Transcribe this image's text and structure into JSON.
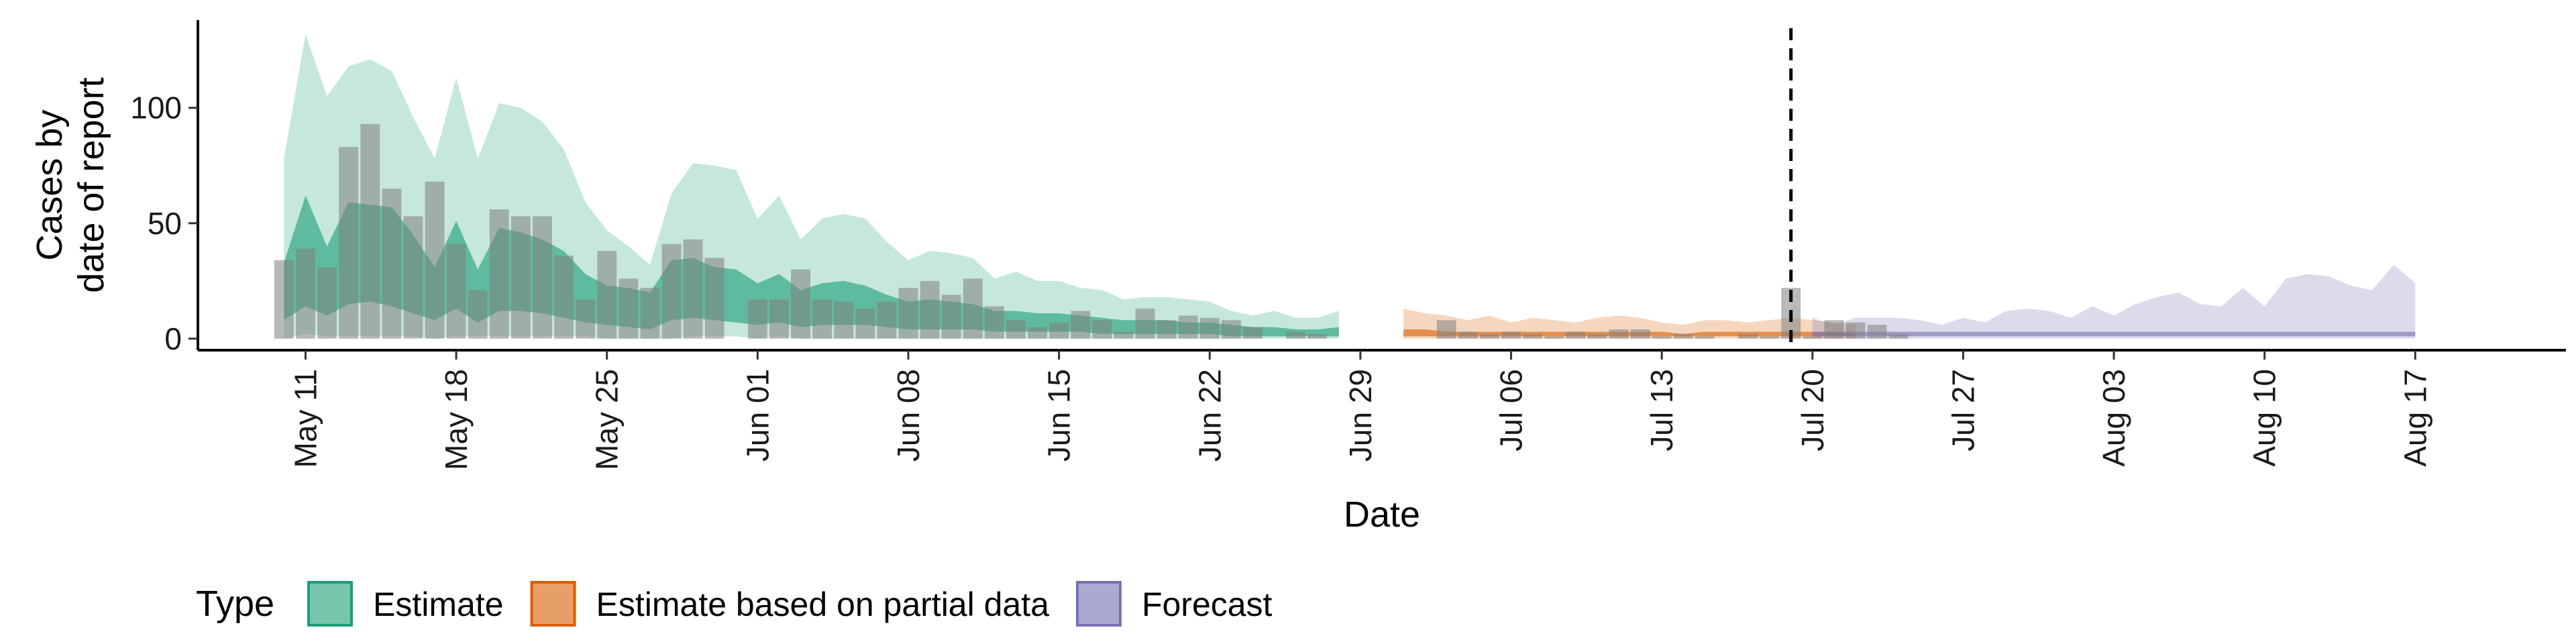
{
  "chart_data": {
    "type": "bar",
    "xlabel": "Date",
    "ylabel": [
      "Cases by",
      "date of report"
    ],
    "x_range": [
      "2020-05-06",
      "2020-08-24"
    ],
    "ylim": [
      -5,
      138
    ],
    "y_ticks": [
      0,
      50,
      100
    ],
    "x_ticks": [
      {
        "date": "2020-05-11",
        "label": "May 11"
      },
      {
        "date": "2020-05-18",
        "label": "May 18"
      },
      {
        "date": "2020-05-25",
        "label": "May 25"
      },
      {
        "date": "2020-06-01",
        "label": "Jun 01"
      },
      {
        "date": "2020-06-08",
        "label": "Jun 08"
      },
      {
        "date": "2020-06-15",
        "label": "Jun 15"
      },
      {
        "date": "2020-06-22",
        "label": "Jun 22"
      },
      {
        "date": "2020-06-29",
        "label": "Jun 29"
      },
      {
        "date": "2020-07-06",
        "label": "Jul 06"
      },
      {
        "date": "2020-07-13",
        "label": "Jul 13"
      },
      {
        "date": "2020-07-20",
        "label": "Jul 20"
      },
      {
        "date": "2020-07-27",
        "label": "Jul 27"
      },
      {
        "date": "2020-08-03",
        "label": "Aug 03"
      },
      {
        "date": "2020-08-10",
        "label": "Aug 10"
      },
      {
        "date": "2020-08-17",
        "label": "Aug 17"
      }
    ],
    "vline_date": "2020-07-19",
    "grid": false,
    "legend": {
      "position": "bottom-left",
      "title": "Type",
      "items": [
        {
          "label": "Estimate",
          "color": "#1b9e77"
        },
        {
          "label": "Estimate based on partial data",
          "color": "#d95f02"
        },
        {
          "label": "Forecast",
          "color": "#7570b3"
        }
      ]
    },
    "reported_cases": {
      "start_date": "2020-05-10",
      "color": "#808080",
      "values": [
        34,
        39,
        31,
        83,
        93,
        65,
        53,
        68,
        41,
        21,
        56,
        53,
        53,
        36,
        17,
        38,
        26,
        22,
        41,
        43,
        35,
        0,
        17,
        17,
        30,
        17,
        16,
        13,
        16,
        22,
        25,
        19,
        26,
        14,
        8,
        5,
        7,
        12,
        8,
        3,
        13,
        8,
        10,
        9,
        8,
        5,
        0,
        3,
        2,
        0,
        0,
        0,
        0,
        0,
        8,
        3,
        2,
        3,
        2,
        1,
        3,
        2,
        4,
        4,
        1,
        2,
        1,
        0,
        2,
        1,
        22,
        1,
        8,
        7,
        6,
        2
      ]
    },
    "series": [
      {
        "name": "Estimate",
        "color": "#1b9e77",
        "start_date": "2020-05-10",
        "outer_upper": [
          78,
          132,
          105,
          118,
          121,
          116,
          96,
          78,
          113,
          78,
          102,
          100,
          94,
          82,
          59,
          47,
          40,
          32,
          63,
          76,
          75,
          73,
          52,
          62,
          43,
          52,
          54,
          52,
          42,
          34,
          38,
          37,
          35,
          26,
          29,
          25,
          25,
          22,
          21,
          17,
          18,
          18,
          17,
          16,
          12,
          10,
          12,
          9,
          9,
          12
        ],
        "outer_lower": [
          0,
          2,
          1,
          1,
          1,
          1,
          1,
          0,
          1,
          1,
          1,
          1,
          1,
          1,
          1,
          0,
          0,
          0,
          0,
          1,
          1,
          1,
          0,
          1,
          0,
          0,
          0,
          0,
          0,
          0,
          0,
          0,
          0,
          0,
          0,
          0,
          0,
          0,
          0,
          0,
          0,
          0,
          0,
          0,
          0,
          0,
          0,
          0,
          0,
          0
        ],
        "inner_upper": [
          33,
          62,
          40,
          59,
          58,
          57,
          45,
          31,
          51,
          30,
          48,
          46,
          43,
          38,
          28,
          23,
          22,
          20,
          34,
          35,
          31,
          30,
          24,
          28,
          21,
          24,
          25,
          23,
          19,
          16,
          17,
          16,
          15,
          12,
          12,
          11,
          11,
          10,
          9,
          8,
          8,
          8,
          7,
          7,
          6,
          5,
          5,
          4,
          4,
          5
        ],
        "inner_lower": [
          8,
          14,
          10,
          15,
          16,
          14,
          11,
          8,
          13,
          7,
          12,
          12,
          11,
          9,
          7,
          6,
          5,
          4,
          8,
          9,
          8,
          7,
          6,
          7,
          5,
          6,
          6,
          6,
          5,
          4,
          4,
          4,
          4,
          3,
          3,
          3,
          3,
          3,
          2,
          2,
          2,
          2,
          2,
          2,
          1,
          1,
          1,
          1,
          1,
          1
        ]
      },
      {
        "name": "Estimate based on partial data",
        "color": "#d95f02",
        "start_date": "2020-07-01",
        "outer_upper": [
          13,
          11,
          10,
          8,
          10,
          7,
          9,
          8,
          7,
          9,
          10,
          9,
          7,
          6,
          8,
          8,
          7,
          8,
          9,
          8,
          7,
          6
        ],
        "outer_lower": [
          0,
          0,
          0,
          0,
          0,
          0,
          0,
          0,
          0,
          0,
          0,
          0,
          0,
          0,
          0,
          0,
          0,
          0,
          0,
          0,
          0,
          0
        ],
        "inner_upper": [
          4,
          4,
          3,
          3,
          3,
          3,
          3,
          3,
          3,
          3,
          3,
          3,
          3,
          2,
          3,
          3,
          3,
          3,
          3,
          3,
          3,
          2
        ],
        "inner_lower": [
          1,
          1,
          1,
          1,
          1,
          1,
          1,
          1,
          1,
          1,
          1,
          1,
          1,
          1,
          1,
          1,
          1,
          1,
          1,
          1,
          1,
          1
        ]
      },
      {
        "name": "Forecast",
        "color": "#7570b3",
        "start_date": "2020-07-20",
        "outer_upper": [
          9,
          6,
          9,
          9,
          9,
          8,
          6,
          9,
          7,
          12,
          13,
          12,
          9,
          14,
          10,
          15,
          18,
          20,
          15,
          14,
          22,
          14,
          26,
          28,
          27,
          23,
          21,
          32,
          24
        ],
        "outer_lower": [
          0,
          0,
          0,
          0,
          0,
          0,
          0,
          0,
          0,
          0,
          0,
          0,
          0,
          0,
          0,
          0,
          0,
          0,
          0,
          0,
          0,
          0,
          0,
          0,
          0,
          0,
          0,
          0,
          0
        ],
        "inner_upper": [
          3,
          3,
          3,
          3,
          3,
          3,
          3,
          3,
          3,
          3,
          3,
          3,
          3,
          3,
          3,
          3,
          3,
          3,
          3,
          3,
          3,
          3,
          3,
          3,
          3,
          3,
          3,
          3,
          3
        ],
        "inner_lower": [
          1,
          1,
          1,
          1,
          1,
          1,
          1,
          1,
          1,
          1,
          1,
          1,
          1,
          1,
          1,
          1,
          1,
          1,
          1,
          1,
          1,
          1,
          1,
          1,
          1,
          1,
          1,
          1,
          1
        ]
      }
    ]
  }
}
